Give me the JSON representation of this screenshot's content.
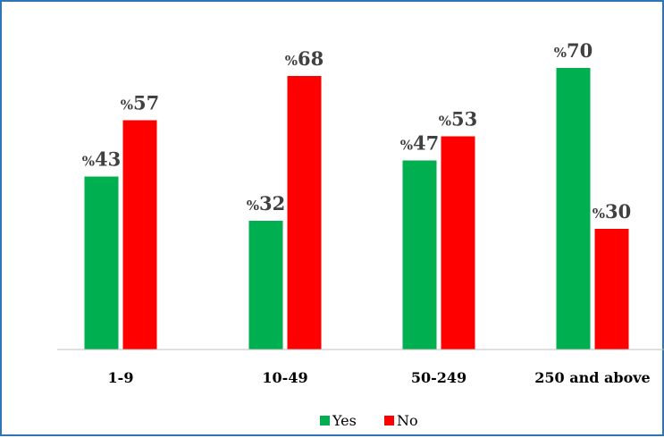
{
  "chart_data": {
    "type": "bar",
    "title": "",
    "xlabel": "",
    "ylabel": "",
    "ylim": [
      0,
      75
    ],
    "grid": false,
    "legend_position": "bottom",
    "categories": [
      "1-9",
      "10-49",
      "50-249",
      "250 and above"
    ],
    "series": [
      {
        "name": "Yes",
        "color": "#00b050",
        "values": [
          43,
          32,
          47,
          70
        ],
        "labels": [
          "%43",
          "%32",
          "%47",
          "%70"
        ]
      },
      {
        "name": "No",
        "color": "#ff0000",
        "values": [
          57,
          68,
          53,
          30
        ],
        "labels": [
          "%57",
          "%68",
          "%53",
          "%30"
        ]
      }
    ]
  },
  "style": {
    "border_color": "#2e75b6",
    "axis_color": "#bfbfbf",
    "label_color": "#404040"
  }
}
